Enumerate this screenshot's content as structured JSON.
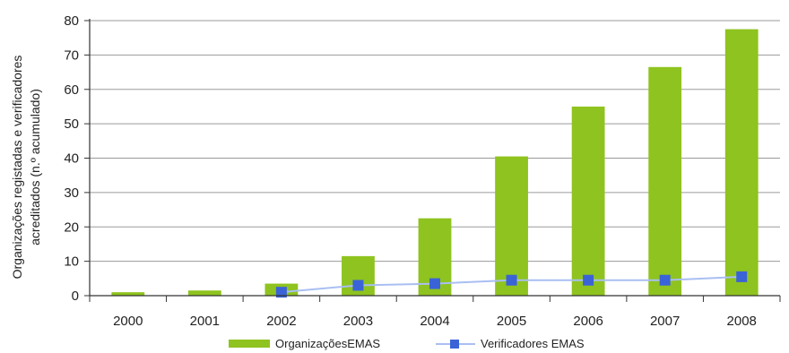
{
  "chart_data": {
    "type": "bar",
    "categories": [
      "2000",
      "2001",
      "2002",
      "2003",
      "2004",
      "2005",
      "2006",
      "2007",
      "2008"
    ],
    "series": [
      {
        "name": "OrganizaçõesEMAS",
        "kind": "bar",
        "color": "#8fc31f",
        "values": [
          1,
          1.5,
          3.5,
          11.5,
          22.5,
          40.5,
          55,
          66.5,
          77.5
        ]
      },
      {
        "name": "Verificadores EMAS",
        "kind": "line",
        "color": "#3a63d8",
        "line_color": "#a9bff2",
        "values": [
          null,
          null,
          1,
          3,
          3.5,
          4.5,
          4.5,
          4.5,
          5.5
        ]
      }
    ],
    "ylabel_lines": [
      "Organizações registadas e verificadores",
      "acreditados (n.º acumulado)"
    ],
    "yticks": [
      "0",
      "10",
      "20",
      "30",
      "40",
      "50",
      "60",
      "70",
      "80"
    ],
    "ylim": [
      0,
      80
    ],
    "grid": true,
    "legend": "bottom"
  }
}
